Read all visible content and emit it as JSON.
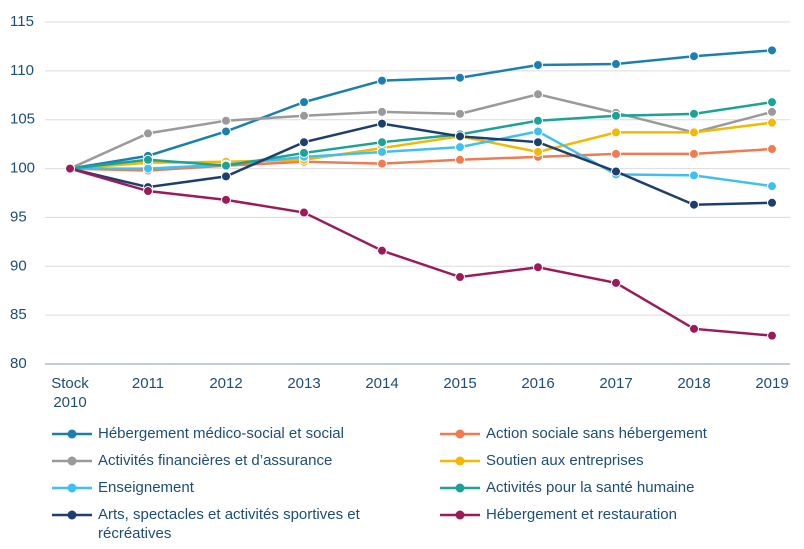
{
  "chart_data": {
    "type": "line",
    "categories": [
      "Stock 2010",
      "2011",
      "2012",
      "2013",
      "2014",
      "2015",
      "2016",
      "2017",
      "2018",
      "2019"
    ],
    "ylim": [
      80,
      115
    ],
    "yticks": [
      80,
      85,
      90,
      95,
      100,
      105,
      110,
      115
    ],
    "grid": true,
    "series": [
      {
        "name": "Hébergement médico-social et social",
        "color": "#1b80b0",
        "values": [
          100,
          101.3,
          103.8,
          106.8,
          109,
          109.3,
          110.6,
          110.7,
          111.5,
          112.1
        ]
      },
      {
        "name": "Action sociale sans hébergement",
        "color": "#f07b4f",
        "values": [
          100,
          99.8,
          100.3,
          100.7,
          100.5,
          100.9,
          101.2,
          101.5,
          101.5,
          102
        ]
      },
      {
        "name": "Activités financières et d’assurance",
        "color": "#9a9a9a",
        "values": [
          100,
          103.6,
          104.9,
          105.4,
          105.8,
          105.6,
          107.6,
          105.7,
          103.7,
          105.8
        ]
      },
      {
        "name": "Soutien aux entreprises",
        "color": "#f5b800",
        "values": [
          100,
          100.6,
          100.7,
          100.9,
          102.1,
          103.3,
          101.7,
          103.7,
          103.7,
          104.7
        ]
      },
      {
        "name": "Enseignement",
        "color": "#3fc0f0",
        "values": [
          100,
          100,
          100.4,
          101.2,
          101.7,
          102.2,
          103.8,
          99.4,
          99.3,
          98.2
        ]
      },
      {
        "name": "Activités pour la santé humaine",
        "color": "#1aa396",
        "values": [
          100,
          100.9,
          100.3,
          101.6,
          102.7,
          103.5,
          104.9,
          105.4,
          105.6,
          106.8
        ]
      },
      {
        "name": "Arts, spectacles et activités sportives et récréatives",
        "color": "#1d3f6e",
        "values": [
          100,
          98.1,
          99.2,
          102.7,
          104.6,
          103.3,
          102.7,
          99.7,
          96.3,
          96.5
        ]
      },
      {
        "name": "Hébergement et restauration",
        "color": "#9b1b5a",
        "values": [
          100,
          97.7,
          96.8,
          95.5,
          91.6,
          88.9,
          89.9,
          88.3,
          83.6,
          82.9
        ]
      }
    ]
  }
}
